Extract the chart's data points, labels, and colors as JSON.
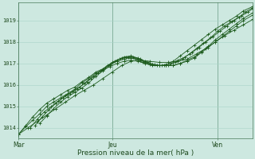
{
  "xlabel": "Pression niveau de la mer( hPa )",
  "bg_color": "#cde8e0",
  "grid_color": "#a8d4c8",
  "line_color": "#1e5c1e",
  "xtick_labels": [
    "Mar",
    "Jeu",
    "Ven"
  ],
  "xtick_pos": [
    0,
    0.4,
    0.85
  ],
  "ytick_labels": [
    "1014",
    "1015",
    "1016",
    "1017",
    "1018",
    "1019"
  ],
  "ytick_vals": [
    1014,
    1015,
    1016,
    1017,
    1018,
    1019
  ],
  "ylim": [
    1013.5,
    1019.85
  ],
  "xlim": [
    0,
    1.0
  ],
  "vline_pos": [
    0.0,
    0.4,
    0.85
  ],
  "series": [
    {
      "x": [
        0.0,
        0.03,
        0.06,
        0.09,
        0.12,
        0.15,
        0.18,
        0.21,
        0.24,
        0.27,
        0.3,
        0.33,
        0.36,
        0.39,
        0.42,
        0.45,
        0.48,
        0.51,
        0.54,
        0.57,
        0.6,
        0.63,
        0.66,
        0.69,
        0.72,
        0.75,
        0.78,
        0.81,
        0.84,
        0.87,
        0.9,
        0.93,
        0.96,
        1.0
      ],
      "y": [
        1013.7,
        1014.05,
        1014.35,
        1014.65,
        1015.0,
        1015.2,
        1015.4,
        1015.6,
        1015.8,
        1016.1,
        1016.3,
        1016.55,
        1016.7,
        1016.85,
        1017.0,
        1017.1,
        1017.15,
        1017.1,
        1017.0,
        1016.9,
        1016.9,
        1016.9,
        1016.9,
        1017.0,
        1017.1,
        1017.25,
        1017.5,
        1017.75,
        1018.0,
        1018.25,
        1018.5,
        1018.75,
        1019.0,
        1019.25
      ]
    },
    {
      "x": [
        0.0,
        0.03,
        0.06,
        0.09,
        0.12,
        0.15,
        0.18,
        0.21,
        0.24,
        0.27,
        0.3,
        0.33,
        0.36,
        0.39,
        0.42,
        0.45,
        0.48,
        0.51,
        0.54,
        0.57,
        0.6,
        0.63,
        0.66,
        0.69,
        0.72,
        0.75,
        0.78,
        0.81,
        0.84,
        0.87,
        0.9,
        0.93,
        0.96,
        1.0
      ],
      "y": [
        1013.7,
        1014.1,
        1014.5,
        1014.85,
        1015.15,
        1015.35,
        1015.55,
        1015.75,
        1015.9,
        1016.15,
        1016.35,
        1016.6,
        1016.75,
        1016.95,
        1017.1,
        1017.2,
        1017.25,
        1017.2,
        1017.05,
        1016.95,
        1016.9,
        1016.9,
        1016.9,
        1017.0,
        1017.15,
        1017.3,
        1017.55,
        1017.8,
        1018.1,
        1018.35,
        1018.6,
        1018.85,
        1019.1,
        1019.35
      ]
    },
    {
      "x": [
        0.05,
        0.08,
        0.11,
        0.14,
        0.17,
        0.2,
        0.23,
        0.26,
        0.29,
        0.32,
        0.35,
        0.38,
        0.41,
        0.44,
        0.47,
        0.5,
        0.53,
        0.56,
        0.59,
        0.62,
        0.65,
        0.68,
        0.71,
        0.74,
        0.77,
        0.8,
        0.83,
        0.86,
        0.89,
        0.92,
        0.95,
        0.98,
        1.0
      ],
      "y": [
        1014.0,
        1014.4,
        1014.75,
        1015.0,
        1015.25,
        1015.5,
        1015.7,
        1015.9,
        1016.15,
        1016.4,
        1016.65,
        1016.9,
        1017.1,
        1017.25,
        1017.3,
        1017.2,
        1017.05,
        1016.95,
        1016.9,
        1016.9,
        1017.0,
        1017.15,
        1017.3,
        1017.5,
        1017.75,
        1018.0,
        1018.25,
        1018.5,
        1018.75,
        1019.0,
        1019.2,
        1019.4,
        1019.55
      ]
    },
    {
      "x": [
        0.07,
        0.1,
        0.13,
        0.16,
        0.19,
        0.22,
        0.25,
        0.28,
        0.31,
        0.34,
        0.37,
        0.4,
        0.43,
        0.46,
        0.49,
        0.52,
        0.55,
        0.58,
        0.61,
        0.64,
        0.67,
        0.7,
        0.73,
        0.76,
        0.79,
        0.82,
        0.85,
        0.88,
        0.91,
        0.94,
        0.97,
        1.0
      ],
      "y": [
        1014.1,
        1014.5,
        1014.85,
        1015.15,
        1015.4,
        1015.6,
        1015.8,
        1016.05,
        1016.3,
        1016.55,
        1016.8,
        1017.05,
        1017.2,
        1017.3,
        1017.3,
        1017.2,
        1017.05,
        1016.95,
        1016.9,
        1016.9,
        1017.05,
        1017.2,
        1017.45,
        1017.7,
        1017.95,
        1018.2,
        1018.5,
        1018.75,
        1018.95,
        1019.15,
        1019.4,
        1019.6
      ]
    },
    {
      "x": [
        0.09,
        0.12,
        0.15,
        0.18,
        0.21,
        0.24,
        0.27,
        0.3,
        0.33,
        0.36,
        0.39,
        0.42,
        0.45,
        0.48,
        0.51,
        0.54,
        0.57,
        0.6,
        0.63,
        0.66,
        0.69,
        0.72,
        0.75,
        0.78,
        0.81,
        0.84,
        0.87,
        0.9,
        0.93,
        0.96,
        1.0
      ],
      "y": [
        1014.2,
        1014.55,
        1014.9,
        1015.2,
        1015.45,
        1015.65,
        1015.85,
        1016.1,
        1016.4,
        1016.65,
        1016.9,
        1017.15,
        1017.3,
        1017.35,
        1017.25,
        1017.1,
        1016.95,
        1016.9,
        1016.95,
        1017.1,
        1017.35,
        1017.6,
        1017.85,
        1018.1,
        1018.35,
        1018.6,
        1018.8,
        1019.0,
        1019.2,
        1019.45,
        1019.65
      ]
    },
    {
      "x": [
        0.0,
        0.04,
        0.08,
        0.12,
        0.16,
        0.2,
        0.24,
        0.28,
        0.32,
        0.36,
        0.4,
        0.44,
        0.48,
        0.52,
        0.56,
        0.6,
        0.64,
        0.68,
        0.72,
        0.76,
        0.8,
        0.84,
        0.88,
        0.92,
        0.96,
        1.0
      ],
      "y": [
        1013.7,
        1014.0,
        1014.3,
        1014.6,
        1014.9,
        1015.2,
        1015.5,
        1015.75,
        1016.0,
        1016.3,
        1016.6,
        1016.9,
        1017.1,
        1017.15,
        1017.1,
        1017.05,
        1017.05,
        1017.1,
        1017.2,
        1017.45,
        1017.7,
        1018.0,
        1018.3,
        1018.55,
        1018.8,
        1019.05
      ]
    }
  ]
}
